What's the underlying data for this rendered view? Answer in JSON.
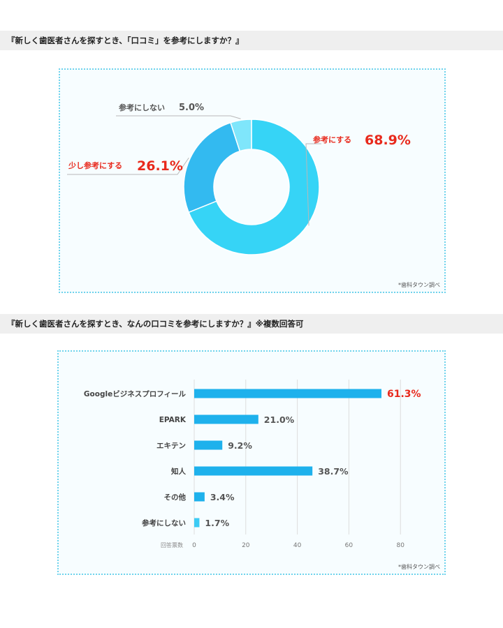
{
  "questions": {
    "q1": "『新しく歯医者さんを探すとき、「口コミ」を参考にしますか？』",
    "q2": "『新しく歯医者さんを探すとき、なんの口コミを参考にしますか？』※複数回答可"
  },
  "source_note": "*歯科タウン調べ",
  "colors": {
    "accent_red": "#e8291c",
    "cyan_main": "#36d4f6",
    "cyan_mid": "#33baf0",
    "cyan_light": "#7fe6fb",
    "bar_blue": "#1eb1ec"
  },
  "chart_data": [
    {
      "type": "pie",
      "donut": true,
      "labels": [
        "参考にする",
        "少し参考にする",
        "参考にしない"
      ],
      "values": [
        68.9,
        26.1,
        5.0
      ],
      "value_labels": [
        "68.9%",
        "26.1%",
        "5.0%"
      ],
      "colors": [
        "#36d4f6",
        "#33baf0",
        "#7fe6fb"
      ],
      "highlight_colors": [
        "#e8291c",
        "#e8291c",
        "#555555"
      ]
    },
    {
      "type": "bar",
      "orientation": "horizontal",
      "categories": [
        "Googleビジネスプロフィール",
        "EPARK",
        "エキテン",
        "知人",
        "その他",
        "参考にしない"
      ],
      "values": [
        61.3,
        21.0,
        9.2,
        38.7,
        3.4,
        1.7
      ],
      "value_labels": [
        "61.3%",
        "21.0%",
        "9.2%",
        "38.7%",
        "3.4%",
        "1.7%"
      ],
      "axis_title": "回答票数",
      "ticks": [
        0,
        20,
        40,
        60,
        80
      ],
      "grid": true
    }
  ]
}
